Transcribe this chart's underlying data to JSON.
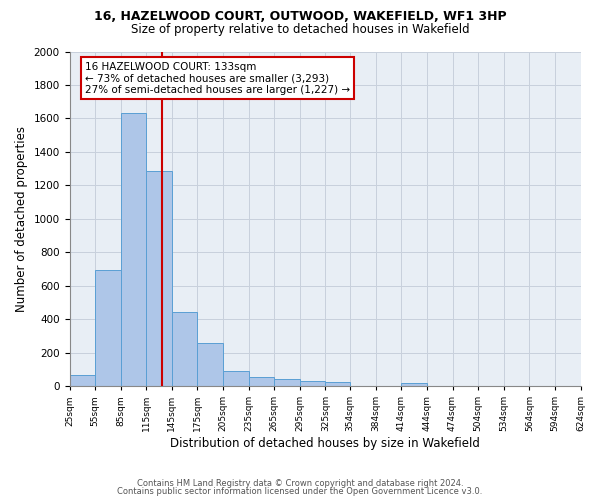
{
  "title1": "16, HAZELWOOD COURT, OUTWOOD, WAKEFIELD, WF1 3HP",
  "title2": "Size of property relative to detached houses in Wakefield",
  "xlabel": "Distribution of detached houses by size in Wakefield",
  "ylabel": "Number of detached properties",
  "bar_values": [
    65,
    695,
    1630,
    1285,
    445,
    255,
    90,
    55,
    40,
    30,
    25,
    0,
    0,
    20,
    0,
    0,
    0,
    0,
    0,
    0
  ],
  "bin_edges": [
    25,
    55,
    85,
    115,
    145,
    175,
    205,
    235,
    265,
    295,
    325,
    354,
    384,
    414,
    444,
    474,
    504,
    534,
    564,
    594,
    624
  ],
  "tick_labels": [
    "25sqm",
    "55sqm",
    "85sqm",
    "115sqm",
    "145sqm",
    "175sqm",
    "205sqm",
    "235sqm",
    "265sqm",
    "295sqm",
    "325sqm",
    "354sqm",
    "384sqm",
    "414sqm",
    "444sqm",
    "474sqm",
    "504sqm",
    "534sqm",
    "564sqm",
    "594sqm",
    "624sqm"
  ],
  "bar_color": "#aec6e8",
  "bar_edgecolor": "#5a9fd4",
  "property_size": 133,
  "property_label": "16 HAZELWOOD COURT: 133sqm",
  "annotation_line1": "← 73% of detached houses are smaller (3,293)",
  "annotation_line2": "27% of semi-detached houses are larger (1,227) →",
  "vline_color": "#cc0000",
  "annotation_box_edgecolor": "#cc0000",
  "ylim": [
    0,
    2000
  ],
  "yticks": [
    0,
    200,
    400,
    600,
    800,
    1000,
    1200,
    1400,
    1600,
    1800,
    2000
  ],
  "grid_color": "#c8d0dc",
  "bg_color": "#e8eef5",
  "footnote1": "Contains HM Land Registry data © Crown copyright and database right 2024.",
  "footnote2": "Contains public sector information licensed under the Open Government Licence v3.0."
}
